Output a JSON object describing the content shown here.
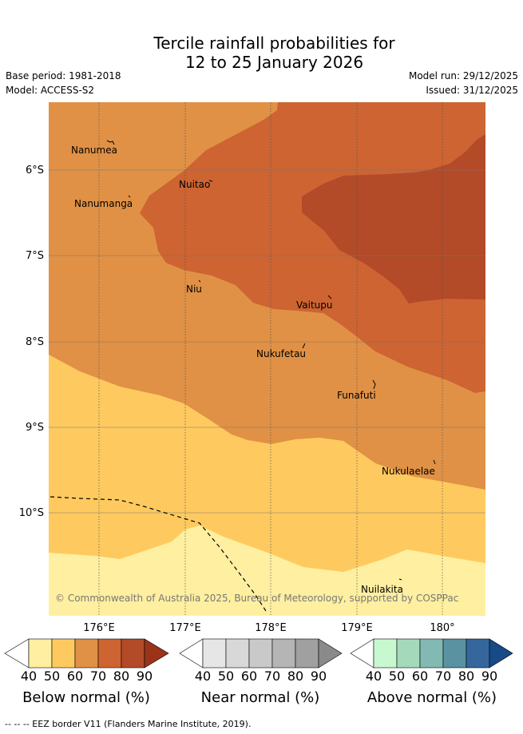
{
  "header": {
    "title_line1": "Tercile rainfall probabilities for",
    "title_line2": "12 to 25 January 2026",
    "base_period": "Base period: 1981-2018",
    "model": "Model: ACCESS-S2",
    "model_run": "Model run: 29/12/2025",
    "issued": "Issued: 31/12/2025"
  },
  "map": {
    "lat_labels": [
      "6°S",
      "7°S",
      "8°S",
      "9°S",
      "10°S"
    ],
    "lon_labels": [
      "176°E",
      "177°E",
      "178°E",
      "179°E",
      "180°"
    ],
    "places": [
      "Nanumea",
      "Nuitao",
      "Nanumanga",
      "Niu",
      "Vaitupu",
      "Nukufetau",
      "Funafuti",
      "Nukulaelae",
      "Nuilakita"
    ],
    "copyright": "© Commonwealth of Australia 2025, Bureau of Meteorology, supported by COSPPac",
    "colors": {
      "below_50": "#FFEFA0",
      "below_60": "#FECA5F",
      "below_70": "#E09145",
      "below_80": "#CD6432",
      "below_90": "#B34A28"
    }
  },
  "colorbars": [
    {
      "title": "Below normal (%)",
      "ticks": [
        "40",
        "50",
        "60",
        "70",
        "80",
        "90"
      ],
      "colors": [
        "#FFEFA0",
        "#FECA5F",
        "#E09145",
        "#CD6432",
        "#B34A28",
        "#9A3318"
      ]
    },
    {
      "title": "Near normal (%)",
      "ticks": [
        "40",
        "50",
        "60",
        "70",
        "80",
        "90"
      ],
      "colors": [
        "#E6E6E6",
        "#D8D8D8",
        "#C9C9C9",
        "#B5B5B5",
        "#A0A0A0",
        "#8A8A8A"
      ]
    },
    {
      "title": "Above normal (%)",
      "ticks": [
        "40",
        "50",
        "60",
        "70",
        "80",
        "90"
      ],
      "colors": [
        "#C8F8CF",
        "#A5D9BC",
        "#83B9B3",
        "#5A92A1",
        "#35679C",
        "#174A86"
      ]
    }
  ],
  "footer": {
    "eez_legend": "--  --  -- EEZ border V11 (Flanders Marine Institute, 2019)."
  }
}
